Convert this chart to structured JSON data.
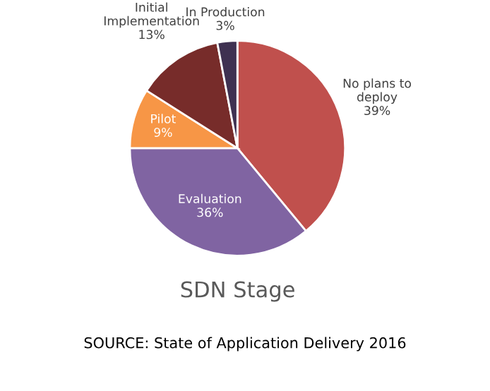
{
  "chart_data": {
    "type": "pie",
    "title": "SDN Stage",
    "categories": [
      "No plans to\ndeploy",
      "Evaluation",
      "Pilot",
      "Initial\nImplementation",
      "In Production"
    ],
    "values": [
      39,
      36,
      9,
      13,
      3
    ],
    "colors": [
      "#c0504d",
      "#8064a2",
      "#f79646",
      "#772c2a",
      "#3f3151"
    ],
    "value_labels": [
      "39%",
      "36%",
      "9%",
      "13%",
      "3%"
    ],
    "annotations": [
      "SOURCE: State of Application Delivery 2016"
    ]
  }
}
